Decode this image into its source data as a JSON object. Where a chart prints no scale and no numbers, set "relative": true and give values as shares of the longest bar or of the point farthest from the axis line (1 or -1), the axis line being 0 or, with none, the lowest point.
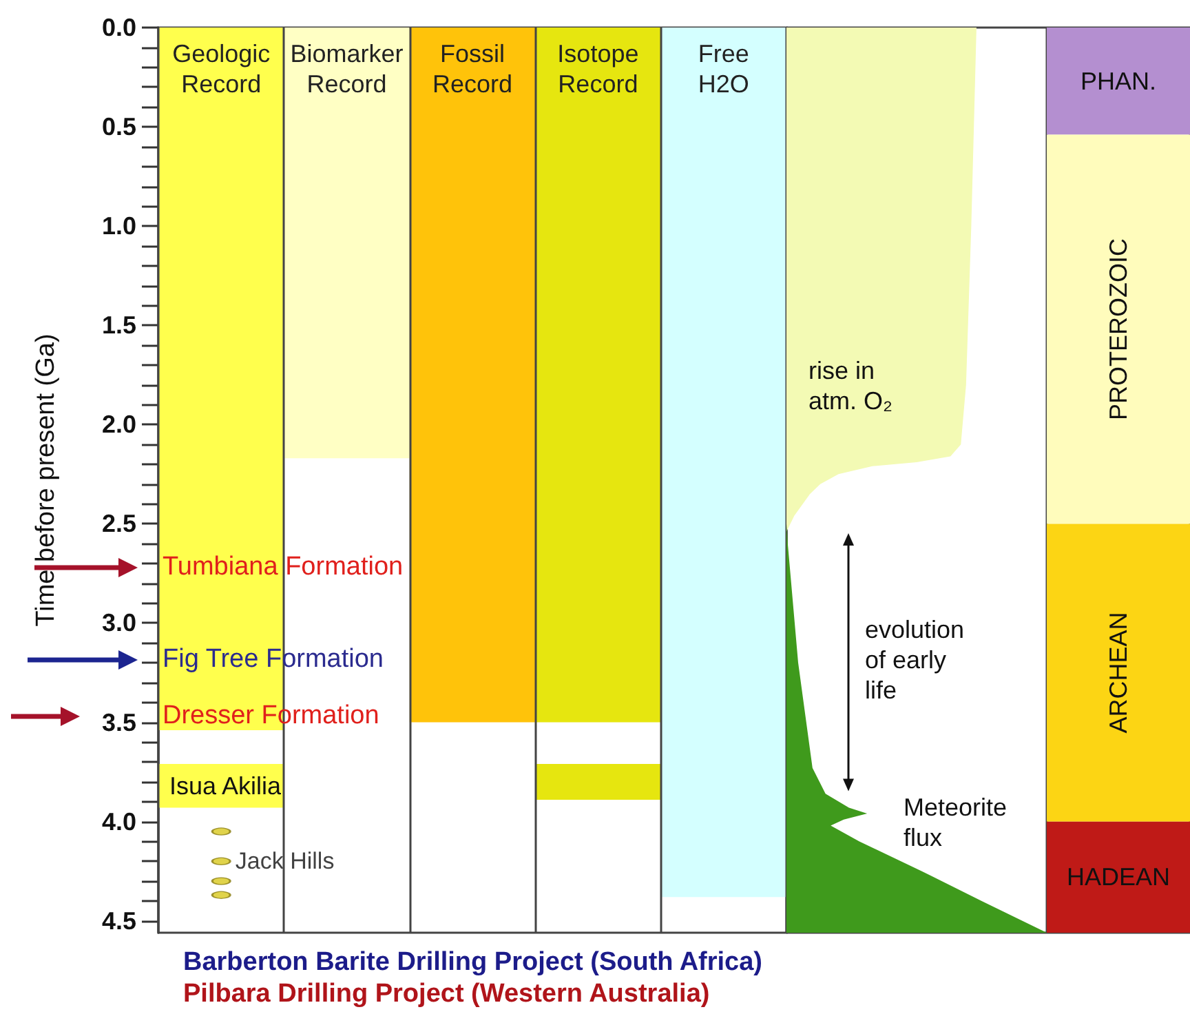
{
  "chart_data": [
    {
      "type": "bar",
      "ylabel": "Time before present (Ga)",
      "categories": [
        "Geologic Record",
        "Biomarker Record",
        "Fossil Record",
        "Isotope Record",
        "Free H2O"
      ],
      "ylim": [
        4.56,
        0
      ],
      "grid": "x",
      "yticks": [
        {
          "value": 0,
          "label": "0.0"
        },
        {
          "value": 0.1,
          "label": null
        },
        {
          "value": 0.2,
          "label": null
        },
        {
          "value": 0.3,
          "label": null
        },
        {
          "value": 0.4,
          "label": null
        },
        {
          "value": 0.5,
          "label": "0.5"
        },
        {
          "value": 0.6,
          "label": null
        },
        {
          "value": 0.7,
          "label": null
        },
        {
          "value": 0.8,
          "label": null
        },
        {
          "value": 0.9,
          "label": null
        },
        {
          "value": 1.0,
          "label": "1.0"
        },
        {
          "value": 1.1,
          "label": null
        },
        {
          "value": 1.2,
          "label": null
        },
        {
          "value": 1.3,
          "label": null
        },
        {
          "value": 1.4,
          "label": null
        },
        {
          "value": 1.5,
          "label": "1.5"
        },
        {
          "value": 1.6,
          "label": null
        },
        {
          "value": 1.7,
          "label": null
        },
        {
          "value": 1.8,
          "label": null
        },
        {
          "value": 1.9,
          "label": null
        },
        {
          "value": 2.0,
          "label": "2.0"
        },
        {
          "value": 2.1,
          "label": null
        },
        {
          "value": 2.2,
          "label": null
        },
        {
          "value": 2.3,
          "label": null
        },
        {
          "value": 2.4,
          "label": null
        },
        {
          "value": 2.5,
          "label": "2.5"
        },
        {
          "value": 2.6,
          "label": null
        },
        {
          "value": 2.7,
          "label": null
        },
        {
          "value": 2.8,
          "label": null
        },
        {
          "value": 2.9,
          "label": null
        },
        {
          "value": 3.0,
          "label": "3.0"
        },
        {
          "value": 3.1,
          "label": null
        },
        {
          "value": 3.2,
          "label": null
        },
        {
          "value": 3.3,
          "label": null
        },
        {
          "value": 3.4,
          "label": null
        },
        {
          "value": 3.5,
          "label": "3.5"
        },
        {
          "value": 3.6,
          "label": null
        },
        {
          "value": 3.7,
          "label": null
        },
        {
          "value": 3.8,
          "label": null
        },
        {
          "value": 3.9,
          "label": null
        },
        {
          "value": 4.0,
          "label": "4.0"
        },
        {
          "value": 4.1,
          "label": null
        },
        {
          "value": 4.2,
          "label": null
        },
        {
          "value": 4.3,
          "label": null
        },
        {
          "value": 4.4,
          "label": null
        },
        {
          "value": 4.5,
          "label": "4.5"
        }
      ],
      "series": [
        {
          "values": [
            3.54,
            2.17,
            3.5,
            3.5,
            4.38
          ],
          "colors": [
            "#ffff4d",
            "#ffffc4",
            "#ffc30a",
            "#e6e60f",
            "#d4ffff"
          ]
        },
        {
          "name": "Isua Akilia",
          "base": [
            3.71,
            null,
            null,
            null,
            null
          ],
          "values": [
            0.22,
            null,
            null,
            null,
            null
          ],
          "color": "#ffff4d"
        },
        {
          "base": [
            null,
            null,
            null,
            3.71,
            null
          ],
          "values": [
            null,
            null,
            null,
            0.18,
            null
          ],
          "color": "#e6e60f"
        },
        {
          "type": "scatter",
          "name": "Jack Hills",
          "marker": "circle",
          "color": "#d8c81e",
          "x": [
            "Geologic Record",
            "Geologic Record",
            "Geologic Record",
            "Geologic Record"
          ],
          "values": [
            4.05,
            4.2,
            4.3,
            4.37
          ]
        }
      ],
      "annotations": [
        "Tumbiana Formation",
        "Fig Tree Formation",
        "Dresser Formation",
        "Barberton Barite Drilling Project (South Africa)",
        "Pilbara Drilling Project (Western Australia)"
      ]
    },
    {
      "type": "area",
      "orientation": "horizontal",
      "relative": true,
      "ylim": [
        4.56,
        0
      ],
      "tick_labels": false,
      "series": [
        {
          "color": "#f3fab4",
          "x": [
            0,
            1.0,
            1.8,
            2.1,
            2.16,
            2.19,
            2.21,
            2.25,
            2.3,
            2.35,
            2.46,
            2.54
          ],
          "values": [
            0.73,
            0.71,
            0.69,
            0.67,
            0.63,
            0.5,
            0.33,
            0.2,
            0.13,
            0.09,
            0.03,
            0
          ]
        },
        {
          "color": "#3f9a1c",
          "x": [
            2.5,
            2.6,
            3.2,
            3.73,
            3.86,
            3.93,
            3.96,
            3.99,
            4.02,
            4.1,
            4.25,
            4.4,
            4.56
          ],
          "values": [
            0,
            0.005,
            0.045,
            0.1,
            0.15,
            0.24,
            0.31,
            0.22,
            0.17,
            0.28,
            0.52,
            0.75,
            1.0
          ]
        }
      ],
      "annotations": [
        "rise in atm. O₂",
        "evolution of early life",
        "Meteorite flux"
      ]
    },
    {
      "type": "bar",
      "stacked": true,
      "categories": [
        null
      ],
      "ylim": [
        4.56,
        0
      ],
      "tick_labels": false,
      "series": [
        {
          "name": "PHAN.",
          "color": "#b48fd0",
          "values": [
            0.54
          ]
        },
        {
          "name": "PROTEROZOIC",
          "color": "#fffcbc",
          "values": [
            1.96
          ]
        },
        {
          "name": "ARCHEAN",
          "color": "#fcd514",
          "values": [
            1.5
          ]
        },
        {
          "name": "HADEAN",
          "color": "#bf1a17",
          "values": [
            0.56
          ]
        }
      ]
    }
  ]
}
